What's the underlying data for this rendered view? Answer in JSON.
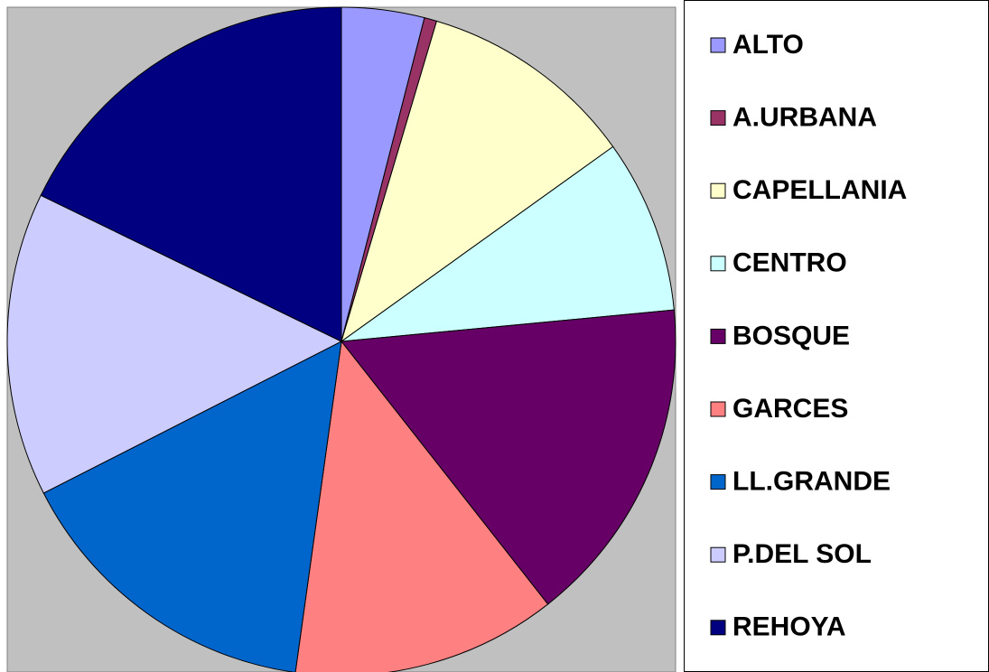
{
  "chart_data": {
    "type": "pie",
    "categories": [
      "ALTO",
      "A.URBANA",
      "CAPELLANIA",
      "CENTRO",
      "BOSQUE",
      "GARCES",
      "LL.GRANDE",
      "P.DEL SOL",
      "REHOYA"
    ],
    "values": [
      4.0,
      0.6,
      10.5,
      8.4,
      15.9,
      12.8,
      15.3,
      14.7,
      17.8
    ],
    "colors": [
      "#9999ff",
      "#993366",
      "#ffffcc",
      "#ccffff",
      "#660066",
      "#ff8080",
      "#0066cc",
      "#ccccff",
      "#000080"
    ],
    "legend": "right"
  }
}
